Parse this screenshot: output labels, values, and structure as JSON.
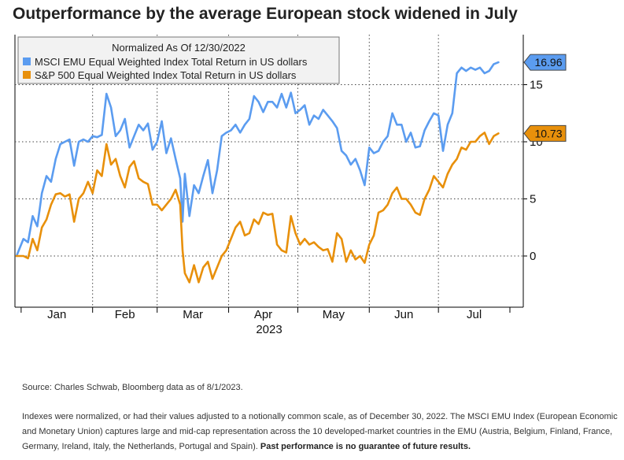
{
  "title": "Outperformance by the average European stock widened in July",
  "source": "Source: Charles Schwab, Bloomberg data as of 8/1/2023.",
  "notes": "Indexes were normalized, or had their values adjusted to a notionally common scale, as of December 30, 2022. The MSCI EMU Index (European Economic and Monetary Union) captures large and mid-cap representation across the 10 developed-market countries in the EMU (Austria, Belgium, Finland, France, Germany, Ireland, Italy, the Netherlands, Portugal and Spain).",
  "disclaimer": "Past performance is no guarantee of future results.",
  "chart_data": {
    "type": "line",
    "legend_title": "Normalized As Of 12/30/2022",
    "legend_position": "top-left",
    "grid": true,
    "xlabel": "2023",
    "x_ticks": [
      "Jan",
      "Feb",
      "Mar",
      "Apr",
      "May",
      "Jun",
      "Jul"
    ],
    "y_ticks": [
      0,
      5,
      10,
      15
    ],
    "ylim": [
      -4,
      19
    ],
    "xlim": [
      "2022-12-30",
      "2023-08-01"
    ],
    "series": [
      {
        "name": "MSCI EMU Equal Weighted Index Total Return in US dollars",
        "color": "#5b9cf0",
        "last_value_label": "16.96",
        "points": [
          [
            "2022-12-30",
            0.0
          ],
          [
            "2023-01-02",
            1.5
          ],
          [
            "2023-01-04",
            1.2
          ],
          [
            "2023-01-06",
            3.5
          ],
          [
            "2023-01-08",
            2.6
          ],
          [
            "2023-01-10",
            5.5
          ],
          [
            "2023-01-12",
            7.0
          ],
          [
            "2023-01-14",
            6.5
          ],
          [
            "2023-01-16",
            8.5
          ],
          [
            "2023-01-18",
            9.8
          ],
          [
            "2023-01-20",
            10.0
          ],
          [
            "2023-01-22",
            10.2
          ],
          [
            "2023-01-24",
            7.9
          ],
          [
            "2023-01-26",
            10.0
          ],
          [
            "2023-01-28",
            10.2
          ],
          [
            "2023-01-30",
            10.0
          ],
          [
            "2023-02-01",
            10.5
          ],
          [
            "2023-02-03",
            10.4
          ],
          [
            "2023-02-05",
            10.6
          ],
          [
            "2023-02-07",
            14.2
          ],
          [
            "2023-02-09",
            13.0
          ],
          [
            "2023-02-11",
            10.5
          ],
          [
            "2023-02-13",
            11.0
          ],
          [
            "2023-02-15",
            12.0
          ],
          [
            "2023-02-17",
            9.5
          ],
          [
            "2023-02-19",
            10.5
          ],
          [
            "2023-02-21",
            11.5
          ],
          [
            "2023-02-23",
            11.0
          ],
          [
            "2023-02-25",
            11.6
          ],
          [
            "2023-02-27",
            9.3
          ],
          [
            "2023-03-01",
            10.0
          ],
          [
            "2023-03-03",
            11.8
          ],
          [
            "2023-03-05",
            9.0
          ],
          [
            "2023-03-07",
            10.3
          ],
          [
            "2023-03-09",
            8.5
          ],
          [
            "2023-03-11",
            6.8
          ],
          [
            "2023-03-12",
            3.0
          ],
          [
            "2023-03-13",
            7.2
          ],
          [
            "2023-03-15",
            3.5
          ],
          [
            "2023-03-17",
            6.2
          ],
          [
            "2023-03-19",
            5.5
          ],
          [
            "2023-03-21",
            7.0
          ],
          [
            "2023-03-23",
            8.4
          ],
          [
            "2023-03-25",
            5.5
          ],
          [
            "2023-03-27",
            7.5
          ],
          [
            "2023-03-29",
            10.5
          ],
          [
            "2023-03-31",
            10.8
          ],
          [
            "2023-04-02",
            11.0
          ],
          [
            "2023-04-04",
            11.5
          ],
          [
            "2023-04-06",
            10.8
          ],
          [
            "2023-04-08",
            11.5
          ],
          [
            "2023-04-10",
            12.0
          ],
          [
            "2023-04-12",
            14.0
          ],
          [
            "2023-04-14",
            13.5
          ],
          [
            "2023-04-16",
            12.6
          ],
          [
            "2023-04-18",
            13.5
          ],
          [
            "2023-04-20",
            13.5
          ],
          [
            "2023-04-22",
            13.0
          ],
          [
            "2023-04-24",
            14.2
          ],
          [
            "2023-04-26",
            13.0
          ],
          [
            "2023-04-28",
            14.3
          ],
          [
            "2023-04-30",
            12.5
          ],
          [
            "2023-05-02",
            12.8
          ],
          [
            "2023-05-04",
            13.2
          ],
          [
            "2023-05-06",
            11.5
          ],
          [
            "2023-05-08",
            12.3
          ],
          [
            "2023-05-10",
            12.0
          ],
          [
            "2023-05-12",
            12.8
          ],
          [
            "2023-05-14",
            12.3
          ],
          [
            "2023-05-16",
            11.8
          ],
          [
            "2023-05-18",
            11.2
          ],
          [
            "2023-05-20",
            9.2
          ],
          [
            "2023-05-22",
            8.8
          ],
          [
            "2023-05-24",
            8.0
          ],
          [
            "2023-05-26",
            8.5
          ],
          [
            "2023-05-28",
            7.5
          ],
          [
            "2023-05-30",
            6.2
          ],
          [
            "2023-06-01",
            9.5
          ],
          [
            "2023-06-03",
            9.0
          ],
          [
            "2023-06-05",
            9.2
          ],
          [
            "2023-06-07",
            10.0
          ],
          [
            "2023-06-09",
            10.5
          ],
          [
            "2023-06-11",
            12.5
          ],
          [
            "2023-06-13",
            11.5
          ],
          [
            "2023-06-15",
            11.5
          ],
          [
            "2023-06-17",
            10.0
          ],
          [
            "2023-06-19",
            10.8
          ],
          [
            "2023-06-21",
            9.5
          ],
          [
            "2023-06-23",
            9.6
          ],
          [
            "2023-06-25",
            11.0
          ],
          [
            "2023-06-27",
            11.8
          ],
          [
            "2023-06-29",
            12.5
          ],
          [
            "2023-07-01",
            12.3
          ],
          [
            "2023-07-03",
            9.2
          ],
          [
            "2023-07-05",
            11.5
          ],
          [
            "2023-07-07",
            12.5
          ],
          [
            "2023-07-09",
            16.0
          ],
          [
            "2023-07-11",
            16.5
          ],
          [
            "2023-07-13",
            16.2
          ],
          [
            "2023-07-15",
            16.5
          ],
          [
            "2023-07-17",
            16.3
          ],
          [
            "2023-07-19",
            16.5
          ],
          [
            "2023-07-21",
            16.0
          ],
          [
            "2023-07-23",
            16.2
          ],
          [
            "2023-07-25",
            16.8
          ],
          [
            "2023-07-27",
            16.96
          ]
        ]
      },
      {
        "name": "S&P 500 Equal Weighted Index Total Return in US dollars",
        "color": "#e8900b",
        "last_value_label": "10.73",
        "points": [
          [
            "2022-12-30",
            0.0
          ],
          [
            "2023-01-02",
            0.0
          ],
          [
            "2023-01-04",
            -0.2
          ],
          [
            "2023-01-06",
            1.5
          ],
          [
            "2023-01-08",
            0.5
          ],
          [
            "2023-01-10",
            2.5
          ],
          [
            "2023-01-12",
            3.2
          ],
          [
            "2023-01-14",
            4.5
          ],
          [
            "2023-01-16",
            5.4
          ],
          [
            "2023-01-18",
            5.5
          ],
          [
            "2023-01-20",
            5.2
          ],
          [
            "2023-01-22",
            5.4
          ],
          [
            "2023-01-24",
            3.0
          ],
          [
            "2023-01-26",
            5.0
          ],
          [
            "2023-01-28",
            5.5
          ],
          [
            "2023-01-30",
            6.5
          ],
          [
            "2023-02-01",
            5.5
          ],
          [
            "2023-02-03",
            7.5
          ],
          [
            "2023-02-05",
            7.0
          ],
          [
            "2023-02-07",
            9.8
          ],
          [
            "2023-02-09",
            8.0
          ],
          [
            "2023-02-11",
            8.5
          ],
          [
            "2023-02-13",
            7.0
          ],
          [
            "2023-02-15",
            6.0
          ],
          [
            "2023-02-17",
            7.8
          ],
          [
            "2023-02-19",
            8.3
          ],
          [
            "2023-02-21",
            6.8
          ],
          [
            "2023-02-23",
            6.5
          ],
          [
            "2023-02-25",
            6.3
          ],
          [
            "2023-02-27",
            4.5
          ],
          [
            "2023-03-01",
            4.5
          ],
          [
            "2023-03-03",
            4.0
          ],
          [
            "2023-03-05",
            4.5
          ],
          [
            "2023-03-07",
            5.0
          ],
          [
            "2023-03-09",
            5.8
          ],
          [
            "2023-03-11",
            4.5
          ],
          [
            "2023-03-12",
            0.5
          ],
          [
            "2023-03-13",
            -1.5
          ],
          [
            "2023-03-15",
            -2.3
          ],
          [
            "2023-03-17",
            -0.8
          ],
          [
            "2023-03-19",
            -2.3
          ],
          [
            "2023-03-21",
            -1.0
          ],
          [
            "2023-03-23",
            -0.5
          ],
          [
            "2023-03-25",
            -2.0
          ],
          [
            "2023-03-27",
            -1.0
          ],
          [
            "2023-03-29",
            0.0
          ],
          [
            "2023-03-31",
            0.5
          ],
          [
            "2023-04-02",
            1.5
          ],
          [
            "2023-04-04",
            2.5
          ],
          [
            "2023-04-06",
            3.0
          ],
          [
            "2023-04-08",
            1.8
          ],
          [
            "2023-04-10",
            2.0
          ],
          [
            "2023-04-12",
            3.2
          ],
          [
            "2023-04-14",
            2.8
          ],
          [
            "2023-04-16",
            3.8
          ],
          [
            "2023-04-18",
            3.6
          ],
          [
            "2023-04-20",
            3.7
          ],
          [
            "2023-04-22",
            1.0
          ],
          [
            "2023-04-24",
            0.5
          ],
          [
            "2023-04-26",
            0.3
          ],
          [
            "2023-04-28",
            3.5
          ],
          [
            "2023-04-30",
            2.0
          ],
          [
            "2023-05-02",
            1.0
          ],
          [
            "2023-05-04",
            1.5
          ],
          [
            "2023-05-06",
            1.0
          ],
          [
            "2023-05-08",
            1.2
          ],
          [
            "2023-05-10",
            0.8
          ],
          [
            "2023-05-12",
            0.5
          ],
          [
            "2023-05-14",
            0.6
          ],
          [
            "2023-05-16",
            -0.5
          ],
          [
            "2023-05-18",
            2.0
          ],
          [
            "2023-05-20",
            1.5
          ],
          [
            "2023-05-22",
            -0.5
          ],
          [
            "2023-05-24",
            0.5
          ],
          [
            "2023-05-26",
            -0.3
          ],
          [
            "2023-05-28",
            0.0
          ],
          [
            "2023-05-30",
            -0.6
          ],
          [
            "2023-06-01",
            1.0
          ],
          [
            "2023-06-03",
            1.8
          ],
          [
            "2023-06-05",
            3.8
          ],
          [
            "2023-06-07",
            4.0
          ],
          [
            "2023-06-09",
            4.5
          ],
          [
            "2023-06-11",
            5.5
          ],
          [
            "2023-06-13",
            6.0
          ],
          [
            "2023-06-15",
            5.0
          ],
          [
            "2023-06-17",
            5.0
          ],
          [
            "2023-06-19",
            4.5
          ],
          [
            "2023-06-21",
            3.8
          ],
          [
            "2023-06-23",
            3.6
          ],
          [
            "2023-06-25",
            5.0
          ],
          [
            "2023-06-27",
            5.8
          ],
          [
            "2023-06-29",
            7.0
          ],
          [
            "2023-07-01",
            6.5
          ],
          [
            "2023-07-03",
            6.0
          ],
          [
            "2023-07-05",
            7.2
          ],
          [
            "2023-07-07",
            8.0
          ],
          [
            "2023-07-09",
            8.5
          ],
          [
            "2023-07-11",
            9.5
          ],
          [
            "2023-07-13",
            9.3
          ],
          [
            "2023-07-15",
            10.0
          ],
          [
            "2023-07-17",
            10.0
          ],
          [
            "2023-07-19",
            10.5
          ],
          [
            "2023-07-21",
            10.8
          ],
          [
            "2023-07-23",
            9.8
          ],
          [
            "2023-07-25",
            10.5
          ],
          [
            "2023-07-27",
            10.73
          ]
        ]
      }
    ]
  }
}
